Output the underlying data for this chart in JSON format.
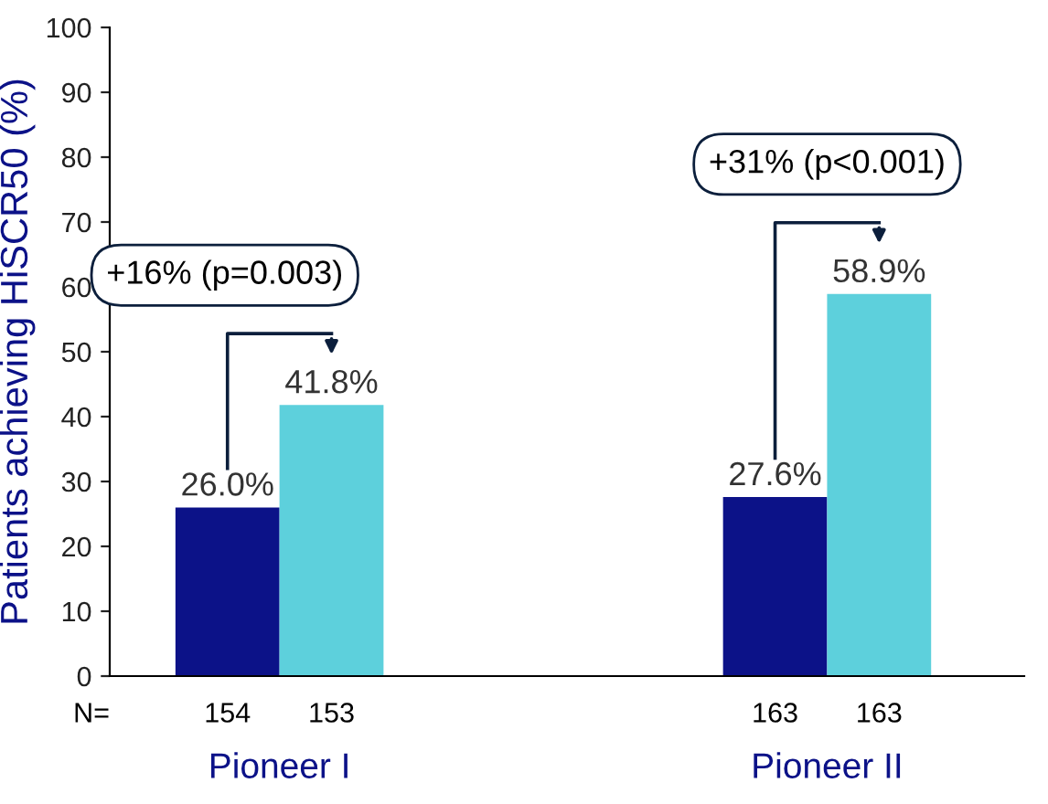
{
  "chart_data": {
    "type": "bar",
    "ylabel": "Patients achieving HiSCR50 (%)",
    "categories": [
      "Pioneer I",
      "Pioneer II"
    ],
    "series": [
      {
        "color": "#0c1288",
        "values": [
          26.0,
          27.6
        ],
        "value_labels": [
          "26.0%",
          "27.6%"
        ]
      },
      {
        "color": "#5dd0dc",
        "values": [
          41.8,
          58.9
        ],
        "value_labels": [
          "41.8%",
          "58.9%"
        ]
      }
    ],
    "ylim": [
      0,
      100
    ],
    "yticks": [
      0,
      10,
      20,
      30,
      40,
      50,
      60,
      70,
      80,
      90,
      100
    ],
    "grid": false,
    "legend": false,
    "annotations": [
      "+16% (p=0.003)",
      "+31% (p<0.001)",
      "N=",
      "154",
      "153",
      "163",
      "163"
    ]
  }
}
